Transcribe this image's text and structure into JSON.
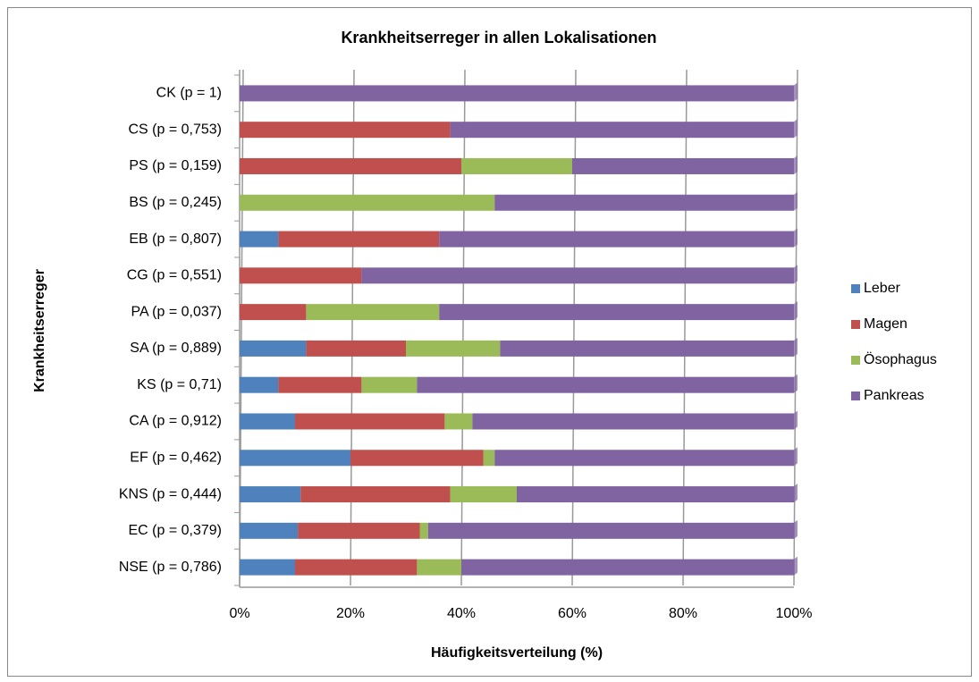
{
  "chart_data": {
    "type": "stacked-barh",
    "title": "Krankheitserreger in allen Lokalisationen",
    "xlabel": "Häufigkeitsverteilung (%)",
    "ylabel": "Krankheitserreger",
    "categories": [
      "CK (p = 1)",
      "CS (p = 0,753)",
      "PS (p = 0,159)",
      "BS (p = 0,245)",
      "EB (p = 0,807)",
      "CG (p = 0,551)",
      "PA (p = 0,037)",
      "SA (p = 0,889)",
      "KS (p = 0,71)",
      "CA (p = 0,912)",
      "EF (p = 0,462)",
      "KNS (p = 0,444)",
      "EC (p = 0,379)",
      "NSE (p = 0,786)"
    ],
    "series": [
      {
        "name": "Leber",
        "color": "#4f81bd",
        "values": [
          0,
          0,
          0,
          0,
          7,
          0,
          0,
          12,
          7,
          10,
          20,
          11,
          10.5,
          10
        ]
      },
      {
        "name": "Magen",
        "color": "#c0504d",
        "values": [
          0,
          38,
          40,
          0,
          29,
          22,
          12,
          18,
          15,
          27,
          24,
          27,
          22,
          22
        ]
      },
      {
        "name": "Ösophagus",
        "color": "#9bbb59",
        "values": [
          0,
          0,
          20,
          46,
          0,
          0,
          24,
          17,
          10,
          5,
          2,
          12,
          1.5,
          8
        ]
      },
      {
        "name": "Pankreas",
        "color": "#8064a2",
        "values": [
          100,
          62,
          40,
          54,
          64,
          78,
          64,
          53,
          68,
          58,
          54,
          50,
          66,
          60
        ]
      }
    ],
    "xlim": [
      0,
      100
    ],
    "xticks": [
      {
        "value": 0,
        "label": "0%"
      },
      {
        "value": 20,
        "label": "20%"
      },
      {
        "value": 40,
        "label": "40%"
      },
      {
        "value": 60,
        "label": "60%"
      },
      {
        "value": 80,
        "label": "80%"
      },
      {
        "value": 100,
        "label": "100%"
      }
    ],
    "grid": true,
    "legend": "right"
  }
}
